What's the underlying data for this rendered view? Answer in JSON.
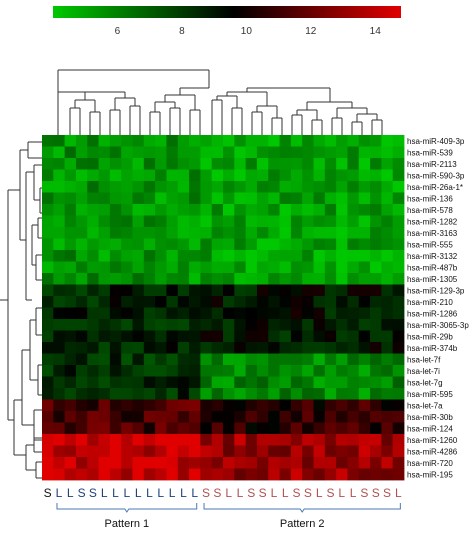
{
  "chart_data": {
    "type": "heatmap",
    "title": "",
    "colorbar": {
      "range": [
        4,
        14.8
      ],
      "ticks": [
        6,
        8,
        10,
        12,
        14
      ],
      "colors": [
        "#00c800",
        "#000000",
        "#e00000"
      ]
    },
    "rows": [
      "hsa-miR-409-3p",
      "hsa-miR-539",
      "hsa-miR-2113",
      "hsa-miR-590-3p",
      "hsa-miR-26a-1*",
      "hsa-miR-136",
      "hsa-miR-578",
      "hsa-miR-1282",
      "hsa-miR-3163",
      "hsa-miR-555",
      "hsa-miR-3132",
      "hsa-miR-487b",
      "hsa-miR-1305",
      "hsa-miR-129-3p",
      "hsa-miR-210",
      "hsa-miR-1286",
      "hsa-miR-3065-3p",
      "hsa-miR-29b",
      "hsa-miR-374b",
      "hsa-let-7f",
      "hsa-let-7i",
      "hsa-let-7g",
      "hsa-miR-595",
      "hsa-let-7a",
      "hsa-miR-30b",
      "hsa-miR-124",
      "hsa-miR-1260",
      "hsa-miR-4286",
      "hsa-miR-720",
      "hsa-miR-195"
    ],
    "columns": [
      "S",
      "L",
      "L",
      "S",
      "S",
      "L",
      "L",
      "L",
      "L",
      "L",
      "L",
      "L",
      "L",
      "L",
      "S",
      "S",
      "L",
      "L",
      "S",
      "S",
      "L",
      "L",
      "S",
      "S",
      "L",
      "S",
      "L",
      "L",
      "S",
      "S",
      "S",
      "L"
    ],
    "column_colors": {
      "S_pattern1": "#111111",
      "pattern1": "#1f3f7a",
      "pattern2": "#b05050"
    },
    "groups": [
      {
        "label": "Pattern 1",
        "start": 1,
        "end": 13,
        "color": "#4a7ab5"
      },
      {
        "label": "Pattern 2",
        "start": 14,
        "end": 31,
        "color": "#4a7ab5"
      }
    ],
    "row_blocks": [
      {
        "rows": [
          0,
          12
        ],
        "mean": [
          5.9,
          5.5
        ],
        "note": "green"
      },
      {
        "rows": [
          13,
          18
        ],
        "mean": [
          8.9,
          9.2
        ]
      },
      {
        "rows": [
          19,
          22
        ],
        "mean": [
          8.6,
          6.2
        ]
      },
      {
        "rows": [
          23,
          25
        ],
        "mean": [
          11.2,
          10.6
        ]
      },
      {
        "rows": [
          26,
          29
        ],
        "mean": [
          13.6,
          12.8
        ]
      }
    ],
    "xlabel": "",
    "ylabel": ""
  }
}
